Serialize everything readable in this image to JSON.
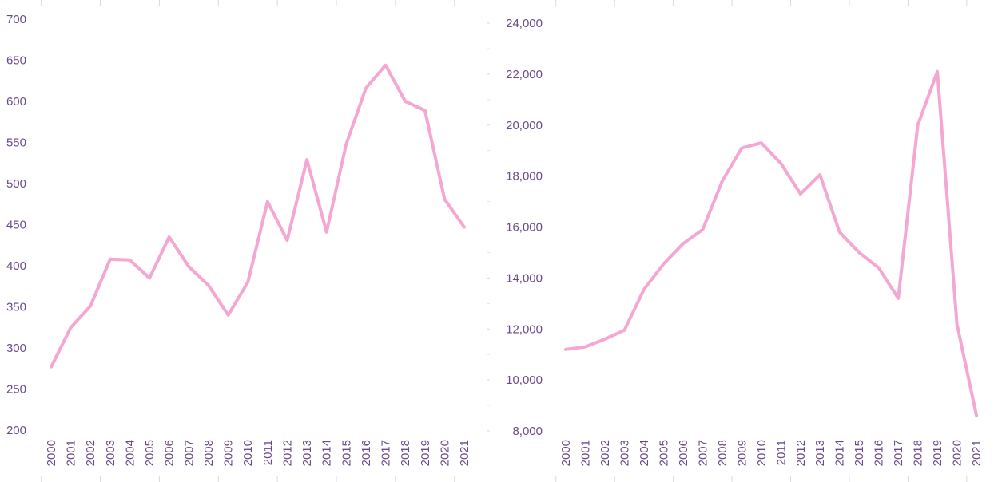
{
  "chart_data": [
    {
      "type": "line",
      "title": "",
      "xlabel": "",
      "ylabel": "",
      "x": [
        "2000",
        "2001",
        "2002",
        "2003",
        "2004",
        "2005",
        "2006",
        "2007",
        "2008",
        "2009",
        "2010",
        "2011",
        "2012",
        "2013",
        "2014",
        "2015",
        "2016",
        "2017",
        "2018",
        "2019",
        "2020",
        "2021"
      ],
      "series": [
        {
          "values": [
            277,
            325,
            351,
            408,
            407,
            385,
            435,
            399,
            376,
            340,
            380,
            478,
            431,
            529,
            441,
            548,
            616,
            644,
            600,
            589,
            481,
            447
          ]
        }
      ],
      "ylim": [
        200,
        700
      ],
      "yticks": [
        200,
        250,
        300,
        350,
        400,
        450,
        500,
        550,
        600,
        650,
        700
      ],
      "ytick_labels": [
        "200",
        "250",
        "300",
        "350",
        "400",
        "450",
        "500",
        "550",
        "600",
        "650",
        "700"
      ],
      "grid": false,
      "line_color": "#f4a7d2",
      "label_color": "#6a4a8c"
    },
    {
      "type": "line",
      "title": "",
      "xlabel": "",
      "ylabel": "",
      "x": [
        "2000",
        "2001",
        "2002",
        "2003",
        "2004",
        "2005",
        "2006",
        "2007",
        "2008",
        "2009",
        "2010",
        "2011",
        "2012",
        "2013",
        "2014",
        "2015",
        "2016",
        "2017",
        "2018",
        "2019",
        "2020",
        "2021"
      ],
      "series": [
        {
          "values": [
            11200,
            11300,
            11600,
            11950,
            13550,
            14550,
            15350,
            15900,
            17800,
            19100,
            19300,
            18500,
            17300,
            18050,
            15800,
            15000,
            14400,
            13200,
            20000,
            22100,
            12200,
            8600
          ]
        }
      ],
      "ylim": [
        8000,
        24000
      ],
      "yticks": [
        8000,
        10000,
        12000,
        14000,
        16000,
        18000,
        20000,
        22000,
        24000
      ],
      "ytick_labels": [
        "8,000",
        "10,000",
        "12,000",
        "14,000",
        "16,000",
        "18,000",
        "20,000",
        "22,000",
        "24,000"
      ],
      "grid": false,
      "line_color": "#f4a7d2",
      "label_color": "#6a4a8c"
    }
  ]
}
